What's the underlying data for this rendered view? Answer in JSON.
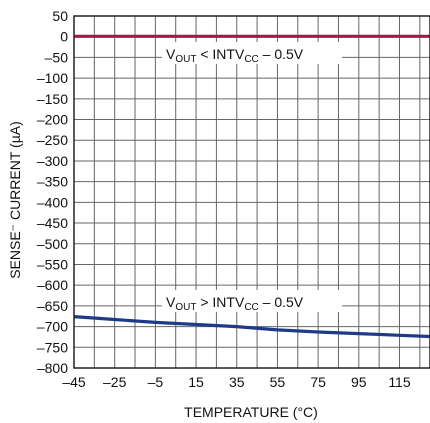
{
  "chart_data": {
    "type": "line",
    "title": "",
    "xlabel": "TEMPERATURE (°C)",
    "ylabel": "SENSE⁻ CURRENT (µA)",
    "xlim": [
      -45,
      130
    ],
    "ylim": [
      -800,
      50
    ],
    "x_ticks": [
      -45,
      -25,
      -5,
      15,
      35,
      55,
      75,
      95,
      115
    ],
    "y_ticks": [
      50,
      0,
      -50,
      -100,
      -150,
      -200,
      -250,
      -300,
      -350,
      -400,
      -450,
      -500,
      -550,
      -600,
      -650,
      -700,
      -750,
      -800
    ],
    "x_tick_labels": [
      "–45",
      "–25",
      "–5",
      "15",
      "35",
      "55",
      "75",
      "95",
      "115"
    ],
    "y_tick_labels": [
      "50",
      "0",
      "–50",
      "–100",
      "–150",
      "–200",
      "–250",
      "–300",
      "–350",
      "–400",
      "–450",
      "–500",
      "–550",
      "–600",
      "–650",
      "–700",
      "–750",
      "–800"
    ],
    "grid": true,
    "colors": {
      "upper": "#b0124a",
      "lower": "#1f3a8a",
      "grid": "#666666"
    },
    "series": [
      {
        "x": [
          -45,
          -25,
          -5,
          15,
          35,
          55,
          75,
          95,
          115,
          130
        ],
        "y": [
          1,
          1,
          1,
          1,
          1,
          1,
          1,
          1,
          1,
          1
        ]
      },
      {
        "x": [
          -45,
          -25,
          -5,
          15,
          35,
          55,
          75,
          95,
          115,
          130
        ],
        "y": [
          -676,
          -683,
          -690,
          -695,
          -700,
          -708,
          -713,
          -717,
          -721,
          -724
        ]
      }
    ],
    "annotations": [
      {
        "main1": "V",
        "sub1": "OUT",
        "main2": " < INTV",
        "sub2": "CC",
        "main3": " – 0.5V"
      },
      {
        "main1": "V",
        "sub1": "OUT",
        "main2": " > INTV",
        "sub2": "CC",
        "main3": " – 0.5V"
      }
    ]
  }
}
